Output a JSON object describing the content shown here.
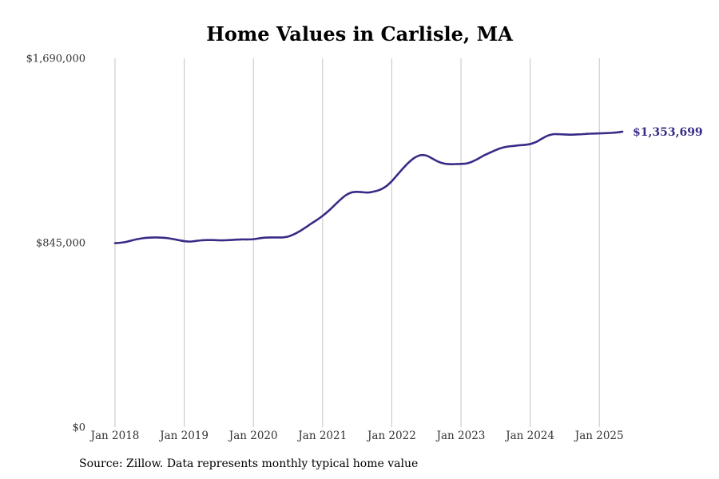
{
  "chart_data": {
    "type": "line",
    "title": "Home Values in Carlisle, MA",
    "source": "Source: Zillow. Data represents monthly typical home value",
    "ylim": [
      0,
      1690000
    ],
    "y_ticks": [
      {
        "value": 0,
        "label": "$0"
      },
      {
        "value": 845000,
        "label": "$845,000"
      },
      {
        "value": 1690000,
        "label": "$1,690,000"
      }
    ],
    "x_ticks": [
      {
        "value": "2018-01",
        "label": "Jan 2018"
      },
      {
        "value": "2019-01",
        "label": "Jan 2019"
      },
      {
        "value": "2020-01",
        "label": "Jan 2020"
      },
      {
        "value": "2021-01",
        "label": "Jan 2021"
      },
      {
        "value": "2022-01",
        "label": "Jan 2022"
      },
      {
        "value": "2023-01",
        "label": "Jan 2023"
      },
      {
        "value": "2024-01",
        "label": "Jan 2024"
      },
      {
        "value": "2025-01",
        "label": "Jan 2025"
      }
    ],
    "grid": "vertical",
    "line_color": "#372c86",
    "end_label": "$1,353,699",
    "series": [
      {
        "x": [
          "2018-01",
          "2018-02",
          "2018-03",
          "2018-04",
          "2018-05",
          "2018-06",
          "2018-07",
          "2018-08",
          "2018-09",
          "2018-10",
          "2018-11",
          "2018-12",
          "2019-01",
          "2019-02",
          "2019-03",
          "2019-04",
          "2019-05",
          "2019-06",
          "2019-07",
          "2019-08",
          "2019-09",
          "2019-10",
          "2019-11",
          "2019-12",
          "2020-01",
          "2020-02",
          "2020-03",
          "2020-04",
          "2020-05",
          "2020-06",
          "2020-07",
          "2020-08",
          "2020-09",
          "2020-10",
          "2020-11",
          "2020-12",
          "2021-01",
          "2021-02",
          "2021-03",
          "2021-04",
          "2021-05",
          "2021-06",
          "2021-07",
          "2021-08",
          "2021-09",
          "2021-10",
          "2021-11",
          "2021-12",
          "2022-01",
          "2022-02",
          "2022-03",
          "2022-04",
          "2022-05",
          "2022-06",
          "2022-07",
          "2022-08",
          "2022-09",
          "2022-10",
          "2022-11",
          "2022-12",
          "2023-01",
          "2023-02",
          "2023-03",
          "2023-04",
          "2023-05",
          "2023-06",
          "2023-07",
          "2023-08",
          "2023-09",
          "2023-10",
          "2023-11",
          "2023-12",
          "2024-01",
          "2024-02",
          "2024-03",
          "2024-04",
          "2024-05",
          "2024-06",
          "2024-07",
          "2024-08",
          "2024-09",
          "2024-10",
          "2024-11",
          "2024-12",
          "2025-01",
          "2025-02",
          "2025-03",
          "2025-04",
          "2025-05"
        ],
        "values": [
          843000,
          845000,
          849000,
          856000,
          862000,
          866000,
          868000,
          869000,
          868000,
          866000,
          862000,
          857000,
          852000,
          850000,
          853000,
          856000,
          857000,
          857000,
          856000,
          856000,
          857000,
          859000,
          860000,
          860000,
          861000,
          865000,
          868000,
          869000,
          869000,
          869000,
          873000,
          883000,
          897000,
          914000,
          932000,
          949000,
          968000,
          990000,
          1015000,
          1040000,
          1062000,
          1075000,
          1078000,
          1076000,
          1075000,
          1080000,
          1088000,
          1103000,
          1127000,
          1157000,
          1187000,
          1214000,
          1235000,
          1246000,
          1244000,
          1231000,
          1217000,
          1208000,
          1205000,
          1205000,
          1206000,
          1208000,
          1217000,
          1230000,
          1245000,
          1257000,
          1269000,
          1279000,
          1285000,
          1288000,
          1291000,
          1293000,
          1297000,
          1306000,
          1321000,
          1335000,
          1342000,
          1342000,
          1341000,
          1340000,
          1341000,
          1342000,
          1344000,
          1345000,
          1346000,
          1347000,
          1348000,
          1350000,
          1353699
        ]
      }
    ]
  }
}
